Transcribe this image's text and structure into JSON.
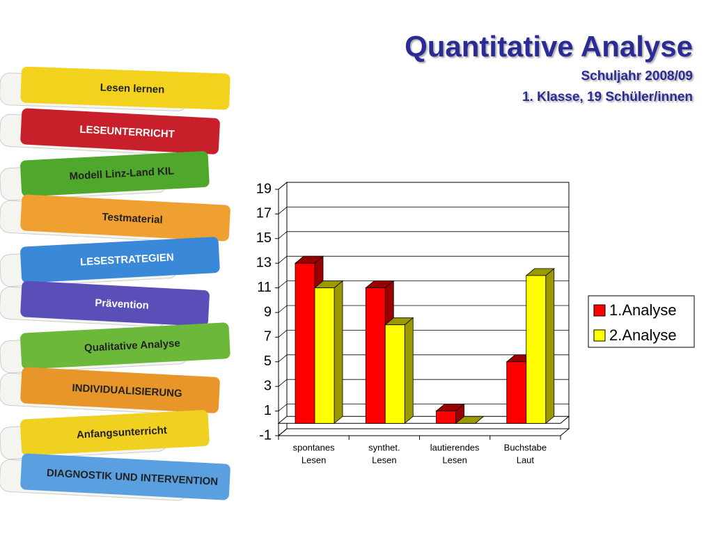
{
  "title": "Quantitative Analyse",
  "subtitle": [
    "Schuljahr 2008/09",
    "1. Klasse, 19 Schüler/innen"
  ],
  "illustration": {
    "books": [
      {
        "label": "Lesen lernen",
        "color": "#f2d21c"
      },
      {
        "label": "LESEUNTERRICHT",
        "color": "#c8202a"
      },
      {
        "label": "Modell Linz-Land KIL",
        "color": "#4fa82c"
      },
      {
        "label": "Testmaterial",
        "color": "#f0a030"
      },
      {
        "label": "LESESTRATEGIEN",
        "color": "#3a88d8"
      },
      {
        "label": "Prävention",
        "color": "#5a4fb8"
      },
      {
        "label": "Qualitative Analyse",
        "color": "#6cb83a"
      },
      {
        "label": "INDIVIDUALISIERUNG",
        "color": "#e8962a"
      },
      {
        "label": "Anfangsunterricht",
        "color": "#f0d020"
      },
      {
        "label": "DIAGNOSTIK UND INTERVENTION",
        "color": "#5aa0e0"
      }
    ]
  },
  "chart_data": {
    "type": "bar3d",
    "categories": [
      [
        "spontanes",
        "Lesen"
      ],
      [
        "synthet.",
        "Lesen"
      ],
      [
        "lautierendes",
        "Lesen"
      ],
      [
        "Buchstabe",
        "Laut"
      ]
    ],
    "series": [
      {
        "name": "1.Analyse",
        "color": "#ff0000",
        "values": [
          13,
          11,
          1,
          5
        ]
      },
      {
        "name": "2.Analyse",
        "color": "#ffff00",
        "values": [
          11,
          8,
          0,
          12
        ]
      }
    ],
    "ylim": [
      -1,
      19
    ],
    "yticks": [
      -1,
      1,
      3,
      5,
      7,
      9,
      11,
      13,
      15,
      17,
      19
    ],
    "grid": true,
    "legend": "right"
  }
}
